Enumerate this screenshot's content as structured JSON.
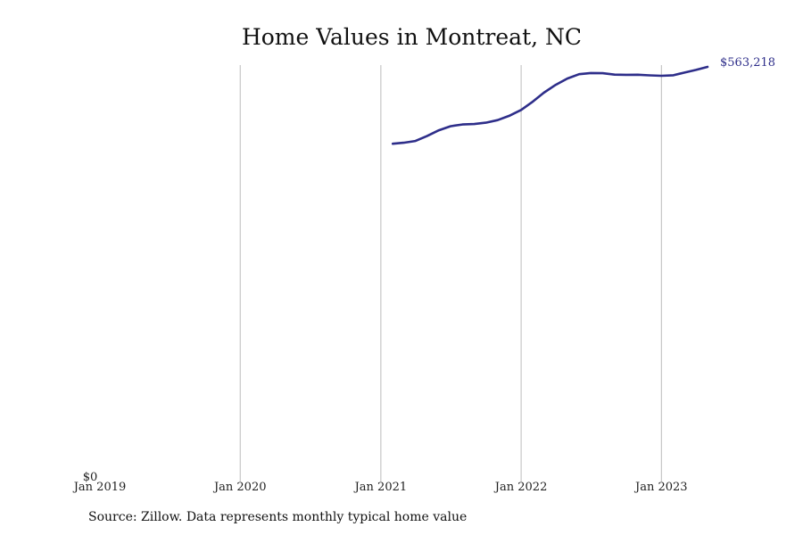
{
  "chart_data": {
    "type": "line",
    "title": "Home Values in Montreat, NC",
    "source": "Source: Zillow. Data represents monthly typical home value",
    "xlabel": "",
    "ylabel": "",
    "y_tick_label": "$0",
    "x_ticks": [
      {
        "date": "2019-01-01",
        "label": "Jan 2019"
      },
      {
        "date": "2020-01-01",
        "label": "Jan 2020"
      },
      {
        "date": "2021-01-01",
        "label": "Jan 2021"
      },
      {
        "date": "2022-01-01",
        "label": "Jan 2022"
      },
      {
        "date": "2023-01-01",
        "label": "Jan 2023"
      }
    ],
    "xlim": [
      "2019-01-01",
      "2023-05-01"
    ],
    "ylim": [
      0,
      563218
    ],
    "grid": "vertical",
    "line_color": "#2e2e8a",
    "end_label": "$563,218",
    "series": [
      {
        "x": [
          "2021-02-01",
          "2021-03-01",
          "2021-04-01",
          "2021-05-01",
          "2021-06-01",
          "2021-07-01",
          "2021-08-01",
          "2021-09-01",
          "2021-10-01",
          "2021-11-01",
          "2021-12-01",
          "2022-01-01",
          "2022-02-01",
          "2022-03-01",
          "2022-04-01",
          "2022-05-01",
          "2022-06-01",
          "2022-07-01",
          "2022-08-01",
          "2022-09-01",
          "2022-10-01",
          "2022-11-01",
          "2022-12-01",
          "2023-01-01",
          "2023-02-01",
          "2023-03-01",
          "2023-04-01",
          "2023-05-01"
        ],
        "values": [
          457500,
          458800,
          461300,
          468000,
          476000,
          481500,
          483900,
          484600,
          486400,
          490000,
          495800,
          504000,
          515600,
          527600,
          538500,
          547200,
          553200,
          554800,
          554500,
          552500,
          552300,
          552400,
          551500,
          550900,
          551700,
          555300,
          559100,
          563218
        ]
      }
    ]
  }
}
